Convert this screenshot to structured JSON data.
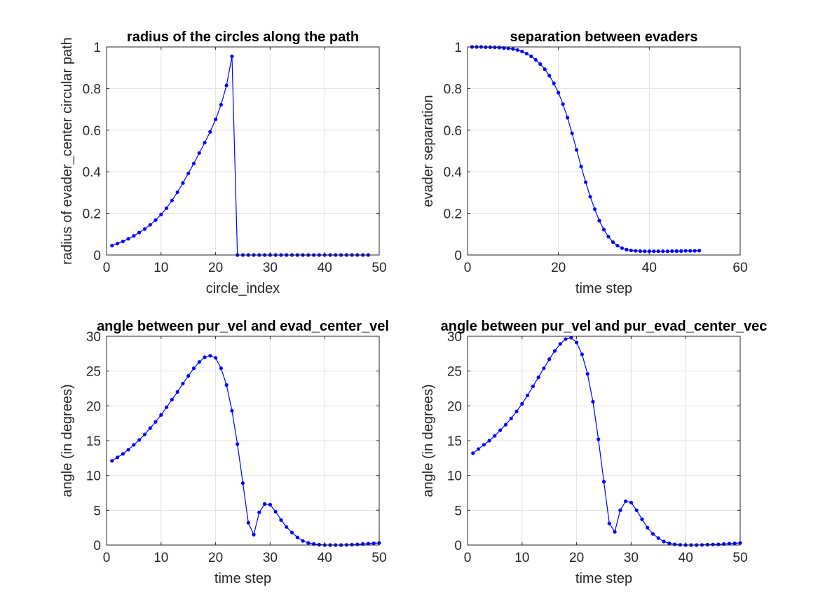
{
  "chart_data": [
    {
      "type": "line",
      "title": "radius of the circles along the path",
      "xlabel": "circle_index",
      "ylabel": "radius of evader_center circular path",
      "xlim": [
        0,
        50
      ],
      "ylim": [
        0,
        1
      ],
      "xticks": [
        0,
        10,
        20,
        30,
        40,
        50
      ],
      "yticks": [
        0,
        0.2,
        0.4,
        0.6,
        0.8,
        1
      ],
      "ytick_labels": [
        "0",
        "0.2",
        "0.4",
        "0.6",
        "0.8",
        "1"
      ],
      "grid": true,
      "color": "#0000ff",
      "x": [
        1,
        2,
        3,
        4,
        5,
        6,
        7,
        8,
        9,
        10,
        11,
        12,
        13,
        14,
        15,
        16,
        17,
        18,
        19,
        20,
        21,
        22,
        23,
        24,
        25,
        26,
        27,
        28,
        29,
        30,
        31,
        32,
        33,
        34,
        35,
        36,
        37,
        38,
        39,
        40,
        41,
        42,
        43,
        44,
        45,
        46,
        47,
        48
      ],
      "y": [
        0.045,
        0.055,
        0.065,
        0.078,
        0.092,
        0.108,
        0.125,
        0.145,
        0.168,
        0.195,
        0.225,
        0.262,
        0.302,
        0.346,
        0.392,
        0.44,
        0.49,
        0.54,
        0.592,
        0.652,
        0.722,
        0.815,
        0.955,
        0,
        0,
        0,
        0,
        0,
        0,
        0,
        0,
        0,
        0,
        0,
        0,
        0,
        0,
        0,
        0,
        0,
        0,
        0,
        0,
        0,
        0,
        0,
        0,
        0
      ]
    },
    {
      "type": "line",
      "title": "separation between evaders",
      "xlabel": "time step",
      "ylabel": "evader separation",
      "xlim": [
        0,
        60
      ],
      "ylim": [
        0,
        1
      ],
      "xticks": [
        0,
        20,
        40,
        60
      ],
      "yticks": [
        0,
        0.2,
        0.4,
        0.6,
        0.8,
        1
      ],
      "ytick_labels": [
        "0",
        "0.2",
        "0.4",
        "0.6",
        "0.8",
        "1"
      ],
      "grid": true,
      "color": "#0000ff",
      "x": [
        1,
        2,
        3,
        4,
        5,
        6,
        7,
        8,
        9,
        10,
        11,
        12,
        13,
        14,
        15,
        16,
        17,
        18,
        19,
        20,
        21,
        22,
        23,
        24,
        25,
        26,
        27,
        28,
        29,
        30,
        31,
        32,
        33,
        34,
        35,
        36,
        37,
        38,
        39,
        40,
        41,
        42,
        43,
        44,
        45,
        46,
        47,
        48,
        49,
        50,
        51
      ],
      "y": [
        1,
        1,
        1,
        0.999,
        0.999,
        0.998,
        0.997,
        0.995,
        0.993,
        0.99,
        0.985,
        0.978,
        0.968,
        0.955,
        0.938,
        0.918,
        0.893,
        0.862,
        0.825,
        0.78,
        0.725,
        0.66,
        0.585,
        0.505,
        0.425,
        0.35,
        0.28,
        0.22,
        0.165,
        0.122,
        0.088,
        0.062,
        0.045,
        0.033,
        0.026,
        0.022,
        0.02,
        0.019,
        0.018,
        0.018,
        0.018,
        0.018,
        0.018,
        0.018,
        0.019,
        0.019,
        0.019,
        0.02,
        0.02,
        0.02,
        0.021
      ]
    },
    {
      "type": "line",
      "title": "angle between pur_vel and evad_center_vel",
      "xlabel": "time step",
      "ylabel": "angle (in degrees)",
      "xlim": [
        0,
        50
      ],
      "ylim": [
        0,
        30
      ],
      "xticks": [
        0,
        10,
        20,
        30,
        40,
        50
      ],
      "yticks": [
        0,
        5,
        10,
        15,
        20,
        25,
        30
      ],
      "ytick_labels": [
        "0",
        "5",
        "10",
        "15",
        "20",
        "25",
        "30"
      ],
      "grid": true,
      "color": "#0000ff",
      "x": [
        1,
        2,
        3,
        4,
        5,
        6,
        7,
        8,
        9,
        10,
        11,
        12,
        13,
        14,
        15,
        16,
        17,
        18,
        19,
        20,
        21,
        22,
        23,
        24,
        25,
        26,
        27,
        28,
        29,
        30,
        31,
        32,
        33,
        34,
        35,
        36,
        37,
        38,
        39,
        40,
        41,
        42,
        43,
        44,
        45,
        46,
        47,
        48,
        49,
        50
      ],
      "y": [
        12.1,
        12.6,
        13.1,
        13.7,
        14.4,
        15.1,
        15.9,
        16.8,
        17.7,
        18.7,
        19.8,
        20.9,
        22.0,
        23.2,
        24.3,
        25.4,
        26.3,
        27.0,
        27.2,
        26.9,
        25.4,
        23.0,
        19.3,
        14.5,
        8.9,
        3.2,
        1.5,
        4.7,
        5.9,
        5.8,
        4.8,
        3.6,
        2.6,
        1.8,
        1.1,
        0.6,
        0.3,
        0.15,
        0.05,
        0.0,
        0.0,
        0.0,
        0.0,
        0.02,
        0.05,
        0.1,
        0.15,
        0.2,
        0.25,
        0.3
      ]
    },
    {
      "type": "line",
      "title": "angle between pur_vel and pur_evad_center_vec",
      "xlabel": "time step",
      "ylabel": "angle (in degrees)",
      "xlim": [
        0,
        50
      ],
      "ylim": [
        0,
        30
      ],
      "xticks": [
        0,
        10,
        20,
        30,
        40,
        50
      ],
      "yticks": [
        0,
        5,
        10,
        15,
        20,
        25,
        30
      ],
      "ytick_labels": [
        "0",
        "5",
        "10",
        "15",
        "20",
        "25",
        "30"
      ],
      "grid": true,
      "color": "#0000ff",
      "x": [
        1,
        2,
        3,
        4,
        5,
        6,
        7,
        8,
        9,
        10,
        11,
        12,
        13,
        14,
        15,
        16,
        17,
        18,
        19,
        20,
        21,
        22,
        23,
        24,
        25,
        26,
        27,
        28,
        29,
        30,
        31,
        32,
        33,
        34,
        35,
        36,
        37,
        38,
        39,
        40,
        41,
        42,
        43,
        44,
        45,
        46,
        47,
        48,
        49,
        50
      ],
      "y": [
        13.2,
        13.8,
        14.4,
        15.0,
        15.7,
        16.5,
        17.3,
        18.2,
        19.2,
        20.3,
        21.5,
        22.8,
        24.1,
        25.4,
        26.7,
        27.9,
        28.9,
        29.6,
        29.8,
        29.1,
        27.4,
        24.6,
        20.6,
        15.2,
        9.1,
        3.1,
        1.9,
        5.0,
        6.3,
        6.1,
        5.0,
        3.7,
        2.5,
        1.6,
        1.0,
        0.5,
        0.25,
        0.1,
        0.03,
        0.0,
        0.0,
        0.0,
        0.02,
        0.05,
        0.08,
        0.1,
        0.15,
        0.2,
        0.25,
        0.3
      ]
    }
  ]
}
